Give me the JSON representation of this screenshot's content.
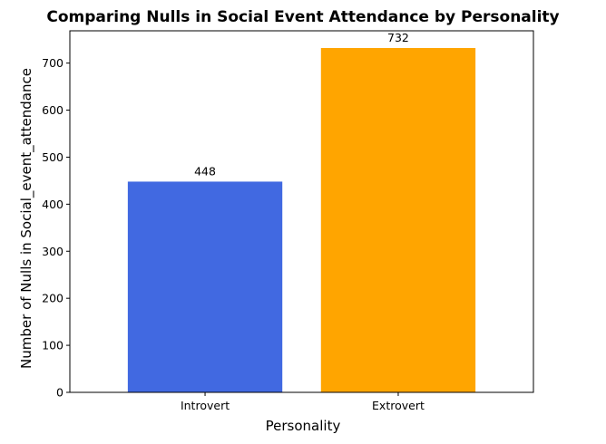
{
  "chart_data": {
    "type": "bar",
    "title": "Comparing Nulls in Social Event Attendance by Personality",
    "xlabel": "Personality",
    "ylabel": "Number of Nulls in Social_event_attendance",
    "categories": [
      "Introvert",
      "Extrovert"
    ],
    "values": [
      448,
      732
    ],
    "data_labels": [
      "448",
      "732"
    ],
    "colors": [
      "#4169E1",
      "#FFA500"
    ],
    "ylim": [
      0,
      768.6
    ],
    "yticks": [
      0,
      100,
      200,
      300,
      400,
      500,
      600,
      700
    ],
    "grid": false,
    "legend": "none"
  }
}
